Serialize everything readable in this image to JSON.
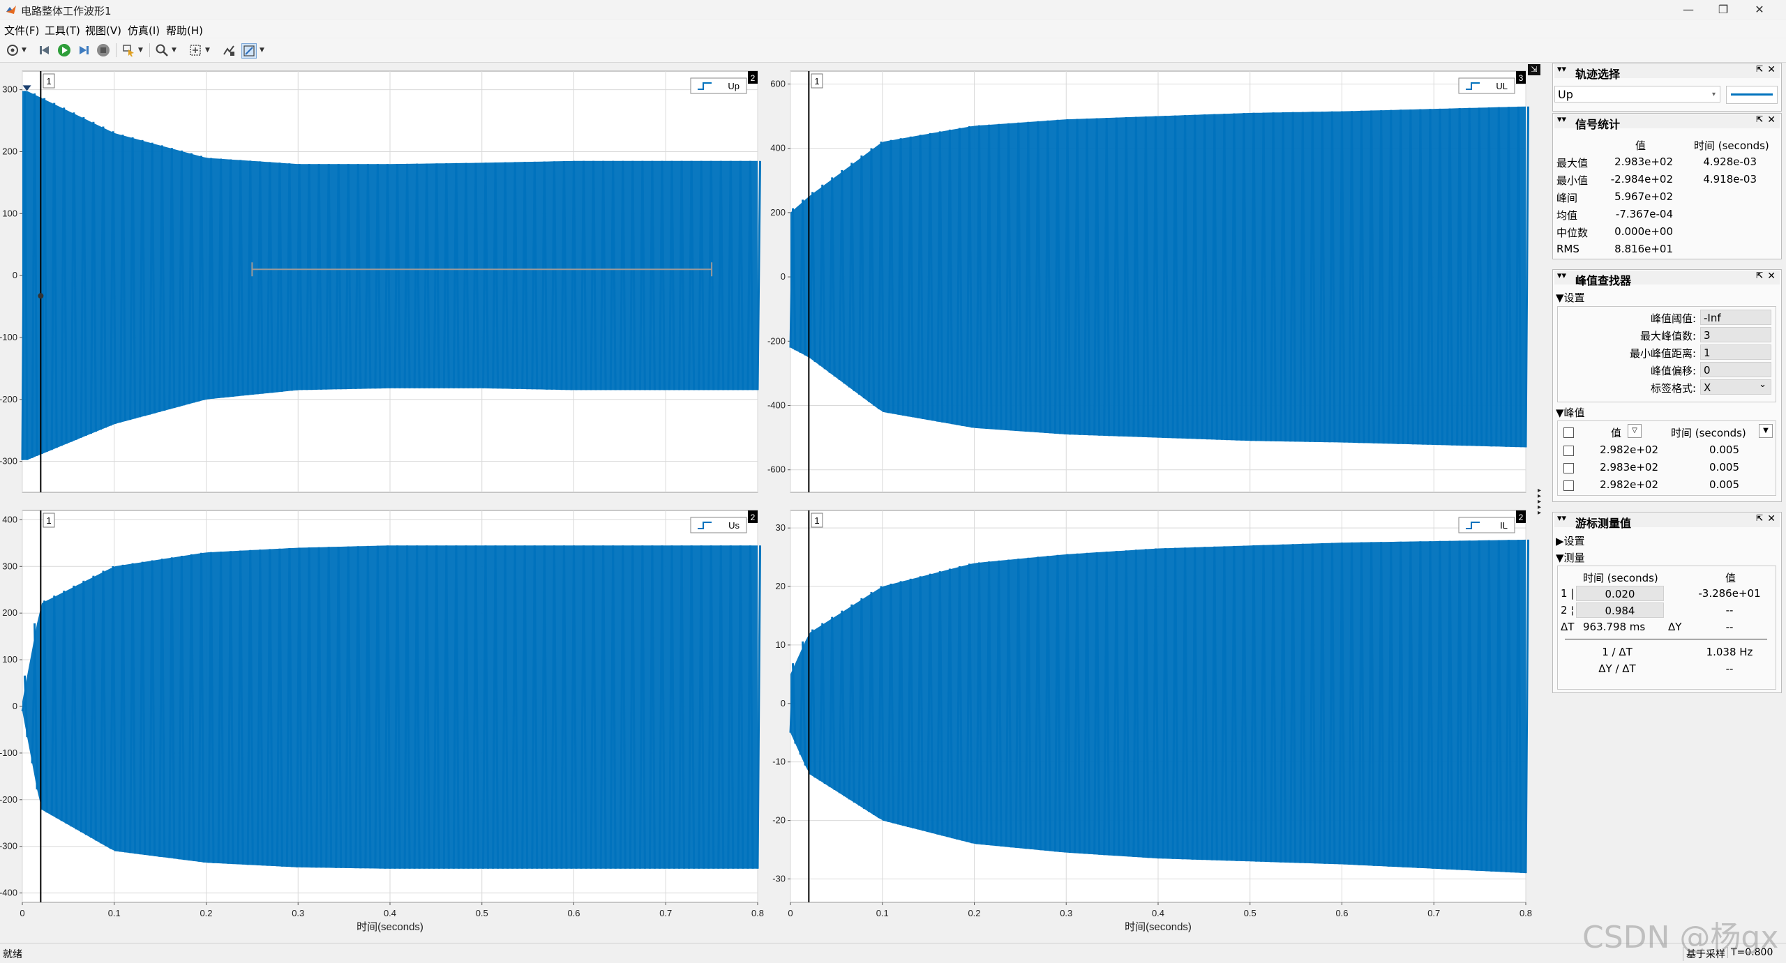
{
  "window": {
    "title": "电路整体工作波形1",
    "minimize": "—",
    "restore": "❐",
    "close": "✕"
  },
  "menu": [
    "文件(F)",
    "工具(T)",
    "视图(V)",
    "仿真(I)",
    "帮助(H)"
  ],
  "toolbar": {
    "icons": [
      "settings-icon",
      "back-step-icon",
      "run-icon",
      "step-forward-icon",
      "stop-icon",
      "highlight-icon",
      "zoom-icon",
      "autoscale-icon",
      "cursor-measure-icon",
      "edit-icon"
    ]
  },
  "colors": {
    "signal": "#0072bd",
    "cursor": "#000000",
    "grid": "#d9d9d9",
    "panel_bg": "#fafafa"
  },
  "plots": [
    {
      "id": "up",
      "index_badge": "1",
      "corner_badge": "2",
      "legend": "Up",
      "signal_name": "Up",
      "y_ticks": [
        "300",
        "200",
        "100",
        "0",
        "-100",
        "-200",
        "-300"
      ],
      "y_range": [
        -350,
        330
      ],
      "x_ticks": [],
      "x_label": ""
    },
    {
      "id": "ul",
      "index_badge": "1",
      "corner_badge": "3",
      "legend": "UL",
      "signal_name": "UL",
      "y_ticks": [
        "600",
        "400",
        "200",
        "0",
        "-200",
        "-400",
        "-600"
      ],
      "y_range": [
        -670,
        640
      ],
      "x_ticks": [],
      "x_label": ""
    },
    {
      "id": "us",
      "index_badge": "1",
      "corner_badge": "2",
      "legend": "Us",
      "signal_name": "Us",
      "y_ticks": [
        "400",
        "300",
        "200",
        "100",
        "0",
        "-100",
        "-200",
        "-300",
        "-400"
      ],
      "y_range": [
        -420,
        420
      ],
      "x_ticks": [
        "0",
        "0.1",
        "0.2",
        "0.3",
        "0.4",
        "0.5",
        "0.6",
        "0.7",
        "0.8"
      ],
      "x_label": "时间(seconds)"
    },
    {
      "id": "il",
      "index_badge": "1",
      "corner_badge": "2",
      "legend": "IL",
      "signal_name": "IL",
      "y_ticks": [
        "30",
        "20",
        "10",
        "0",
        "-10",
        "-20",
        "-30"
      ],
      "y_range": [
        -34,
        33
      ],
      "x_ticks": [
        "0",
        "0.1",
        "0.2",
        "0.3",
        "0.4",
        "0.5",
        "0.6",
        "0.7",
        "0.8"
      ],
      "x_label": "时间(seconds)"
    }
  ],
  "chart_data": [
    {
      "type": "line",
      "title": "",
      "xlabel": "",
      "ylabel": "",
      "legend": [
        "Up"
      ],
      "x_range": [
        0,
        0.8
      ],
      "ylim": [
        -350,
        330
      ],
      "grid": true,
      "legend_position": "top-right",
      "series": [
        {
          "name": "Up",
          "envelope_time": [
            0,
            0.005,
            0.1,
            0.2,
            0.3,
            0.4,
            0.5,
            0.6,
            0.8
          ],
          "envelope_max": [
            298,
            298,
            230,
            190,
            180,
            180,
            182,
            185,
            185
          ],
          "envelope_min": [
            -298,
            -298,
            -240,
            -200,
            -185,
            -182,
            -182,
            -185,
            -185
          ]
        }
      ],
      "cursors": [
        0.02,
        0.984
      ]
    },
    {
      "type": "line",
      "title": "",
      "xlabel": "",
      "ylabel": "",
      "legend": [
        "UL"
      ],
      "x_range": [
        0,
        0.8
      ],
      "ylim": [
        -670,
        640
      ],
      "grid": true,
      "legend_position": "top-right",
      "series": [
        {
          "name": "UL",
          "envelope_time": [
            0,
            0.02,
            0.1,
            0.2,
            0.3,
            0.4,
            0.5,
            0.6,
            0.8
          ],
          "envelope_max": [
            200,
            250,
            420,
            470,
            490,
            500,
            510,
            515,
            530
          ],
          "envelope_min": [
            -220,
            -250,
            -420,
            -470,
            -490,
            -500,
            -510,
            -515,
            -530
          ]
        }
      ]
    },
    {
      "type": "line",
      "title": "",
      "xlabel": "时间(seconds)",
      "ylabel": "",
      "legend": [
        "Us"
      ],
      "x_range": [
        0,
        0.8
      ],
      "ylim": [
        -420,
        420
      ],
      "grid": true,
      "legend_position": "top-right",
      "series": [
        {
          "name": "Us",
          "envelope_time": [
            0,
            0.02,
            0.1,
            0.2,
            0.3,
            0.4,
            0.5,
            0.6,
            0.8
          ],
          "envelope_max": [
            10,
            220,
            300,
            330,
            340,
            345,
            345,
            345,
            345
          ],
          "envelope_min": [
            -10,
            -220,
            -310,
            -335,
            -345,
            -348,
            -348,
            -348,
            -348
          ]
        }
      ]
    },
    {
      "type": "line",
      "title": "",
      "xlabel": "时间(seconds)",
      "ylabel": "",
      "legend": [
        "IL"
      ],
      "x_range": [
        0,
        0.8
      ],
      "ylim": [
        -34,
        33
      ],
      "grid": true,
      "legend_position": "top-right",
      "series": [
        {
          "name": "IL",
          "envelope_time": [
            0,
            0.02,
            0.1,
            0.2,
            0.3,
            0.4,
            0.5,
            0.6,
            0.8
          ],
          "envelope_max": [
            5,
            12,
            20,
            24,
            25.5,
            26.5,
            27,
            27.5,
            28
          ],
          "envelope_min": [
            -5,
            -12,
            -20,
            -24,
            -25.5,
            -26.5,
            -27,
            -27.5,
            -29
          ]
        }
      ]
    }
  ],
  "trace_selection": {
    "title": "轨迹选择",
    "selected": "Up"
  },
  "signal_stats": {
    "title": "信号统计",
    "col_value": "值",
    "col_time": "时间 (seconds)",
    "rows": [
      {
        "label": "最大值",
        "value": "2.983e+02",
        "time": "4.928e-03"
      },
      {
        "label": "最小值",
        "value": "-2.984e+02",
        "time": "4.918e-03"
      },
      {
        "label": "峰间",
        "value": "5.967e+02",
        "time": ""
      },
      {
        "label": "均值",
        "value": "-7.367e-04",
        "time": ""
      },
      {
        "label": "中位数",
        "value": "0.000e+00",
        "time": ""
      },
      {
        "label": "RMS",
        "value": "8.816e+01",
        "time": ""
      }
    ]
  },
  "peak_finder": {
    "title": "峰值查找器",
    "settings_header": "▼设置",
    "settings": [
      {
        "label": "峰值阈值:",
        "value": "-Inf"
      },
      {
        "label": "最大峰值数:",
        "value": "3"
      },
      {
        "label": "最小峰值距离:",
        "value": "1"
      },
      {
        "label": "峰值偏移:",
        "value": "0"
      },
      {
        "label": "标签格式:",
        "value": "X"
      }
    ],
    "peaks_header": "▼峰值",
    "col_value": "值",
    "col_time": "时间 (seconds)",
    "rows": [
      {
        "value": "2.982e+02",
        "time": "0.005"
      },
      {
        "value": "2.983e+02",
        "time": "0.005"
      },
      {
        "value": "2.982e+02",
        "time": "0.005"
      }
    ]
  },
  "cursor_measure": {
    "title": "游标测量值",
    "settings_header": "▶设置",
    "measure_header": "▼测量",
    "col_time": "时间 (seconds)",
    "col_value": "值",
    "cursor1": {
      "label": "1 |",
      "time": "0.020",
      "value": "-3.286e+01"
    },
    "cursor2": {
      "label": "2 ¦",
      "time": "0.984",
      "value": "--"
    },
    "delta_t_label": "ΔT",
    "delta_t": "963.798 ms",
    "delta_y_label": "ΔY",
    "delta_y": "--",
    "inv_dt_label": "1 / ΔT",
    "inv_dt": "1.038 Hz",
    "dy_dt_label": "ΔY / ΔT",
    "dy_dt": "--"
  },
  "status": {
    "left": "就绪",
    "sample_mode": "基于采样",
    "time": "T=0.800"
  },
  "watermark": "CSDN @杨gx"
}
